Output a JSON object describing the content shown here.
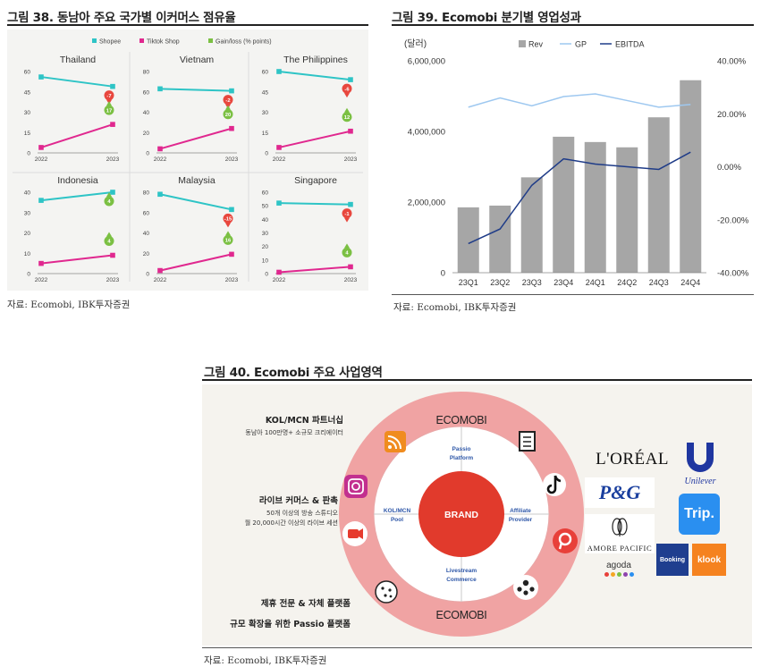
{
  "fig38": {
    "title": "그림 38. 동남아 주요 국가별 이커머스 점유율",
    "source": "자료: Ecomobi, IBK투자증권",
    "legend": [
      {
        "label": "Shopee",
        "color": "#2ec4c6"
      },
      {
        "label": "Tiktok Shop",
        "color": "#e0288f"
      },
      {
        "label": "Gain/loss (% points)",
        "color": "#7bc043"
      }
    ],
    "loss_color": "#e8473e",
    "gain_color": "#7bc043",
    "x_labels": [
      "2022",
      "2023"
    ]
  },
  "fig39": {
    "title": "그림 39. Ecomobi 분기별 영업성과",
    "source": "자료: Ecomobi, IBK투자증권",
    "unit": "(달러)",
    "legend": [
      "Rev",
      "GP",
      "EBITDA"
    ]
  },
  "fig40": {
    "title": "그림 40. Ecomobi 주요 사업영역",
    "source": "자료: Ecomobi, IBK투자증권",
    "left_text": [
      {
        "head": "KOL/MCN 파트너십",
        "sub": [
          "동남아 100만명+ 소규모 크리에이터"
        ]
      },
      {
        "head": "라이브 커머스 & 판촉",
        "sub": [
          "50개 이상의 방송 스튜디오",
          "월 20,000시간 이상의 라이브 세션"
        ]
      },
      {
        "head": "제휴 전문 & 자체 플랫폼",
        "sub": []
      },
      {
        "head": "규모 확장을 위한 Passio 플랫폼",
        "sub": []
      }
    ],
    "ring_logo_top": "ECOMOBI",
    "ring_logo_bottom": "ECOMOBI",
    "center": "BRAND",
    "segments": {
      "top": [
        "Passio",
        "Platform"
      ],
      "left": [
        "KOL/MCN",
        "Pool"
      ],
      "right": [
        "Affiliate",
        "Provider"
      ],
      "bottom": [
        "Livestream",
        "Commerce"
      ]
    },
    "brands": {
      "loreal": "L'ORÉAL",
      "unilever": "Unilever",
      "pg": "P&G",
      "trip": "Trip.",
      "amore": "AMORE PACIFIC",
      "agoda": "agoda",
      "booking": "Booking",
      "klook": "klook"
    }
  },
  "chart_data": [
    {
      "type": "line",
      "title": "Thailand",
      "categories": [
        "2022",
        "2023"
      ],
      "ylim": [
        0,
        60
      ],
      "yticks": [
        0,
        15,
        30,
        45,
        60
      ],
      "series": [
        {
          "name": "Shopee",
          "values": [
            56,
            49
          ]
        },
        {
          "name": "Tiktok Shop",
          "values": [
            4,
            21
          ]
        }
      ],
      "gain_loss": {
        "Shopee": "-7",
        "Tiktok Shop": "17"
      }
    },
    {
      "type": "line",
      "title": "Vietnam",
      "categories": [
        "2022",
        "2023"
      ],
      "ylim": [
        0,
        80
      ],
      "yticks": [
        0,
        20,
        40,
        60,
        80
      ],
      "series": [
        {
          "name": "Shopee",
          "values": [
            63,
            61
          ]
        },
        {
          "name": "Tiktok Shop",
          "values": [
            4,
            24
          ]
        }
      ],
      "gain_loss": {
        "Shopee": "-2",
        "Tiktok Shop": "20"
      }
    },
    {
      "type": "line",
      "title": "The Philippines",
      "categories": [
        "2022",
        "2023"
      ],
      "ylim": [
        0,
        60
      ],
      "yticks": [
        0,
        15,
        30,
        45,
        60
      ],
      "series": [
        {
          "name": "Shopee",
          "values": [
            60,
            54
          ]
        },
        {
          "name": "Tiktok Shop",
          "values": [
            4,
            16
          ]
        }
      ],
      "gain_loss": {
        "Shopee": "-6",
        "Tiktok Shop": "12"
      }
    },
    {
      "type": "line",
      "title": "Indonesia",
      "categories": [
        "2022",
        "2023"
      ],
      "ylim": [
        0,
        40
      ],
      "yticks": [
        0,
        10,
        20,
        30,
        40
      ],
      "series": [
        {
          "name": "Shopee",
          "values": [
            36,
            40
          ]
        },
        {
          "name": "Tiktok Shop",
          "values": [
            5,
            9
          ]
        }
      ],
      "gain_loss": {
        "Shopee": "4",
        "Tiktok Shop": "4"
      }
    },
    {
      "type": "line",
      "title": "Malaysia",
      "categories": [
        "2022",
        "2023"
      ],
      "ylim": [
        0,
        80
      ],
      "yticks": [
        0,
        20,
        40,
        60,
        80
      ],
      "series": [
        {
          "name": "Shopee",
          "values": [
            78,
            63
          ]
        },
        {
          "name": "Tiktok Shop",
          "values": [
            3,
            19
          ]
        }
      ],
      "gain_loss": {
        "Shopee": "-15",
        "Tiktok Shop": "16"
      }
    },
    {
      "type": "line",
      "title": "Singapore",
      "categories": [
        "2022",
        "2023"
      ],
      "ylim": [
        0,
        60
      ],
      "yticks": [
        0,
        10,
        20,
        30,
        40,
        50,
        60
      ],
      "series": [
        {
          "name": "Shopee",
          "values": [
            52,
            51
          ]
        },
        {
          "name": "Tiktok Shop",
          "values": [
            1,
            5
          ]
        }
      ],
      "gain_loss": {
        "Shopee": "-1",
        "Tiktok Shop": "4"
      }
    },
    {
      "type": "bar",
      "title": "",
      "categories": [
        "23Q1",
        "23Q2",
        "23Q3",
        "23Q4",
        "24Q1",
        "24Q2",
        "24Q3",
        "24Q4"
      ],
      "ylabel": "(달러)",
      "ylim": [
        0,
        6000000
      ],
      "yticks": [
        0,
        2000000,
        4000000,
        6000000
      ],
      "ytick_labels": [
        "0",
        "2,000,000",
        "4,000,000",
        "6,000,000"
      ],
      "y2lim": [
        -40,
        40
      ],
      "y2ticks": [
        -40,
        -20,
        0,
        20,
        40
      ],
      "y2tick_labels": [
        "-40.00%",
        "-20.00%",
        "0.00%",
        "20.00%",
        "40.00%"
      ],
      "series": [
        {
          "name": "Rev",
          "type": "bar",
          "axis": "left",
          "values": [
            1850000,
            1900000,
            2700000,
            3850000,
            3700000,
            3550000,
            4400000,
            5450000
          ],
          "color": "#a6a6a6"
        },
        {
          "name": "GP",
          "type": "line",
          "axis": "right",
          "values": [
            22.5,
            26,
            23,
            26.5,
            27.5,
            25,
            22.5,
            23.5
          ],
          "color": "#9ec8f0"
        },
        {
          "name": "EBITDA",
          "type": "line",
          "axis": "right",
          "values": [
            -29,
            -23.5,
            -7,
            3,
            1,
            0,
            -1,
            5.5
          ],
          "color": "#1f3c88"
        }
      ],
      "legend": "top-center",
      "grid": false
    }
  ]
}
